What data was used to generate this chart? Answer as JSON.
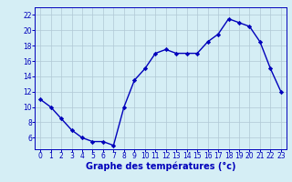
{
  "hours": [
    0,
    1,
    2,
    3,
    4,
    5,
    6,
    7,
    8,
    9,
    10,
    11,
    12,
    13,
    14,
    15,
    16,
    17,
    18,
    19,
    20,
    21,
    22,
    23
  ],
  "temperatures": [
    11,
    10,
    8.5,
    7,
    6,
    5.5,
    5.5,
    5,
    10,
    13.5,
    15,
    17,
    17.5,
    17,
    17,
    17,
    18.5,
    19.5,
    21.5,
    21,
    20.5,
    18.5,
    15,
    12
  ],
  "line_color": "#0000bb",
  "marker": "D",
  "marker_size": 2.2,
  "line_width": 1.0,
  "bg_color": "#d5eef5",
  "grid_color": "#b0c8d4",
  "xlabel": "Graphe des températures (°c)",
  "xlabel_color": "#0000bb",
  "xlabel_fontsize": 7,
  "tick_color": "#0000bb",
  "tick_fontsize": 5.5,
  "ylim": [
    4.5,
    23
  ],
  "xlim": [
    -0.5,
    23.5
  ],
  "yticks": [
    6,
    8,
    10,
    12,
    14,
    16,
    18,
    20,
    22
  ],
  "xticks": [
    0,
    1,
    2,
    3,
    4,
    5,
    6,
    7,
    8,
    9,
    10,
    11,
    12,
    13,
    14,
    15,
    16,
    17,
    18,
    19,
    20,
    21,
    22,
    23
  ]
}
